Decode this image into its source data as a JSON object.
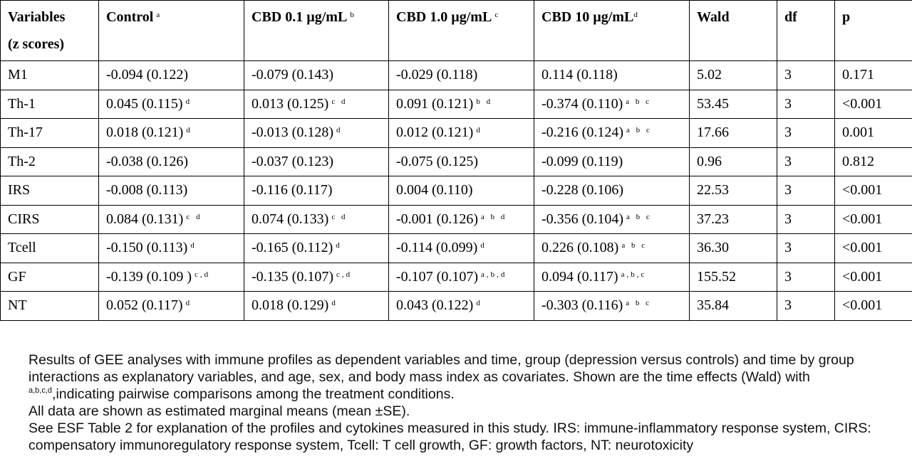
{
  "table": {
    "headers": [
      {
        "line1": "Variables",
        "line2": "(z scores)",
        "sup": ""
      },
      {
        "line1": "Control",
        "line2": "",
        "sup": "a"
      },
      {
        "line1": "CBD 0.1 µg/mL",
        "line2": "",
        "sup": "b"
      },
      {
        "line1": "CBD 1.0 µg/mL",
        "line2": "",
        "sup": "c"
      },
      {
        "line1": "CBD 10 µg/mL",
        "line2": "",
        "sup": "d"
      },
      {
        "line1": "Wald",
        "line2": "",
        "sup": ""
      },
      {
        "line1": "df",
        "line2": "",
        "sup": ""
      },
      {
        "line1": "p",
        "line2": "",
        "sup": ""
      }
    ],
    "rows": [
      {
        "variable": "M1",
        "control": {
          "value": "-0.094 (0.122)",
          "sup": ""
        },
        "cbd01": {
          "value": "-0.079 (0.143)",
          "sup": ""
        },
        "cbd1": {
          "value": "-0.029 (0.118)",
          "sup": ""
        },
        "cbd10": {
          "value": "0.114 (0.118)",
          "sup": ""
        },
        "wald": "5.02",
        "df": "3",
        "p": "0.171"
      },
      {
        "variable": "Th-1",
        "control": {
          "value": "0.045 (0.115)",
          "sup": "d"
        },
        "cbd01": {
          "value": "0.013 (0.125)",
          "sup": "c d"
        },
        "cbd1": {
          "value": "0.091 (0.121)",
          "sup": "b d"
        },
        "cbd10": {
          "value": "-0.374 (0.110)",
          "sup": "a b c"
        },
        "wald": "53.45",
        "df": "3",
        "p": "<0.001"
      },
      {
        "variable": "Th-17",
        "control": {
          "value": "0.018 (0.121)",
          "sup": "d"
        },
        "cbd01": {
          "value": "-0.013 (0.128)",
          "sup": "d"
        },
        "cbd1": {
          "value": "0.012 (0.121)",
          "sup": "d"
        },
        "cbd10": {
          "value": "-0.216 (0.124)",
          "sup": "a b c"
        },
        "wald": "17.66",
        "df": "3",
        "p": "0.001"
      },
      {
        "variable": "Th-2",
        "control": {
          "value": "-0.038 (0.126)",
          "sup": ""
        },
        "cbd01": {
          "value": "-0.037 (0.123)",
          "sup": ""
        },
        "cbd1": {
          "value": "-0.075 (0.125)",
          "sup": ""
        },
        "cbd10": {
          "value": "-0.099 (0.119)",
          "sup": ""
        },
        "wald": "0.96",
        "df": "3",
        "p": "0.812"
      },
      {
        "variable": "IRS",
        "control": {
          "value": "-0.008 (0.113)",
          "sup": ""
        },
        "cbd01": {
          "value": "-0.116 (0.117)",
          "sup": ""
        },
        "cbd1": {
          "value": "0.004 (0.110)",
          "sup": ""
        },
        "cbd10": {
          "value": "-0.228 (0.106)",
          "sup": ""
        },
        "wald": "22.53",
        "df": "3",
        "p": "<0.001"
      },
      {
        "variable": "CIRS",
        "control": {
          "value": "0.084 (0.131)",
          "sup": "c d"
        },
        "cbd01": {
          "value": "0.074 (0.133)",
          "sup": "c d"
        },
        "cbd1": {
          "value": "-0.001 (0.126)",
          "sup": "a b d"
        },
        "cbd10": {
          "value": "-0.356 (0.104)",
          "sup": "a b c"
        },
        "wald": "37.23",
        "df": "3",
        "p": "<0.001"
      },
      {
        "variable": "Tcell",
        "control": {
          "value": "-0.150 (0.113)",
          "sup": "d"
        },
        "cbd01": {
          "value": "-0.165 (0.112)",
          "sup": "d"
        },
        "cbd1": {
          "value": "-0.114 (0.099)",
          "sup": "d"
        },
        "cbd10": {
          "value": "0.226 (0.108)",
          "sup": "a b c"
        },
        "wald": "36.30",
        "df": "3",
        "p": "<0.001"
      },
      {
        "variable": "GF",
        "control": {
          "value": "-0.139 (0.109 )",
          "sup": "c,d"
        },
        "cbd01": {
          "value": "-0.135 (0.107)",
          "sup": "c,d"
        },
        "cbd1": {
          "value": "-0.107 (0.107)",
          "sup": "a,b,d"
        },
        "cbd10": {
          "value": "0.094 (0.117)",
          "sup": "a,b,c"
        },
        "wald": "155.52",
        "df": "3",
        "p": "<0.001"
      },
      {
        "variable": "NT",
        "control": {
          "value": "0.052 (0.117)",
          "sup": "d"
        },
        "cbd01": {
          "value": "0.018 (0.129)",
          "sup": "d"
        },
        "cbd1": {
          "value": "0.043 (0.122)",
          "sup": "d"
        },
        "cbd10": {
          "value": "-0.303 (0.116)",
          "sup": "a b c"
        },
        "wald": "35.84",
        "df": "3",
        "p": "<0.001"
      }
    ]
  },
  "notes": {
    "para1_text": "Results of GEE analyses with immune profiles as dependent variables and time, group (depression versus controls) and time by group interactions as explanatory variables, and age, sex, and body mass index as covariates. Shown are the time effects (Wald) with",
    "para1_sup": "a,b,c,d",
    "para1_tail": ",indicating pairwise comparisons among the treatment conditions.",
    "para2": "All data are shown as estimated marginal means (mean ±SE).",
    "para3": "See ESF Table 2 for explanation of the profiles and cytokines measured in this study. IRS: immune-inflammatory response system, CIRS: compensatory immunoregulatory response system, Tcell: T cell growth, GF: growth factors, NT: neurotoxicity"
  }
}
